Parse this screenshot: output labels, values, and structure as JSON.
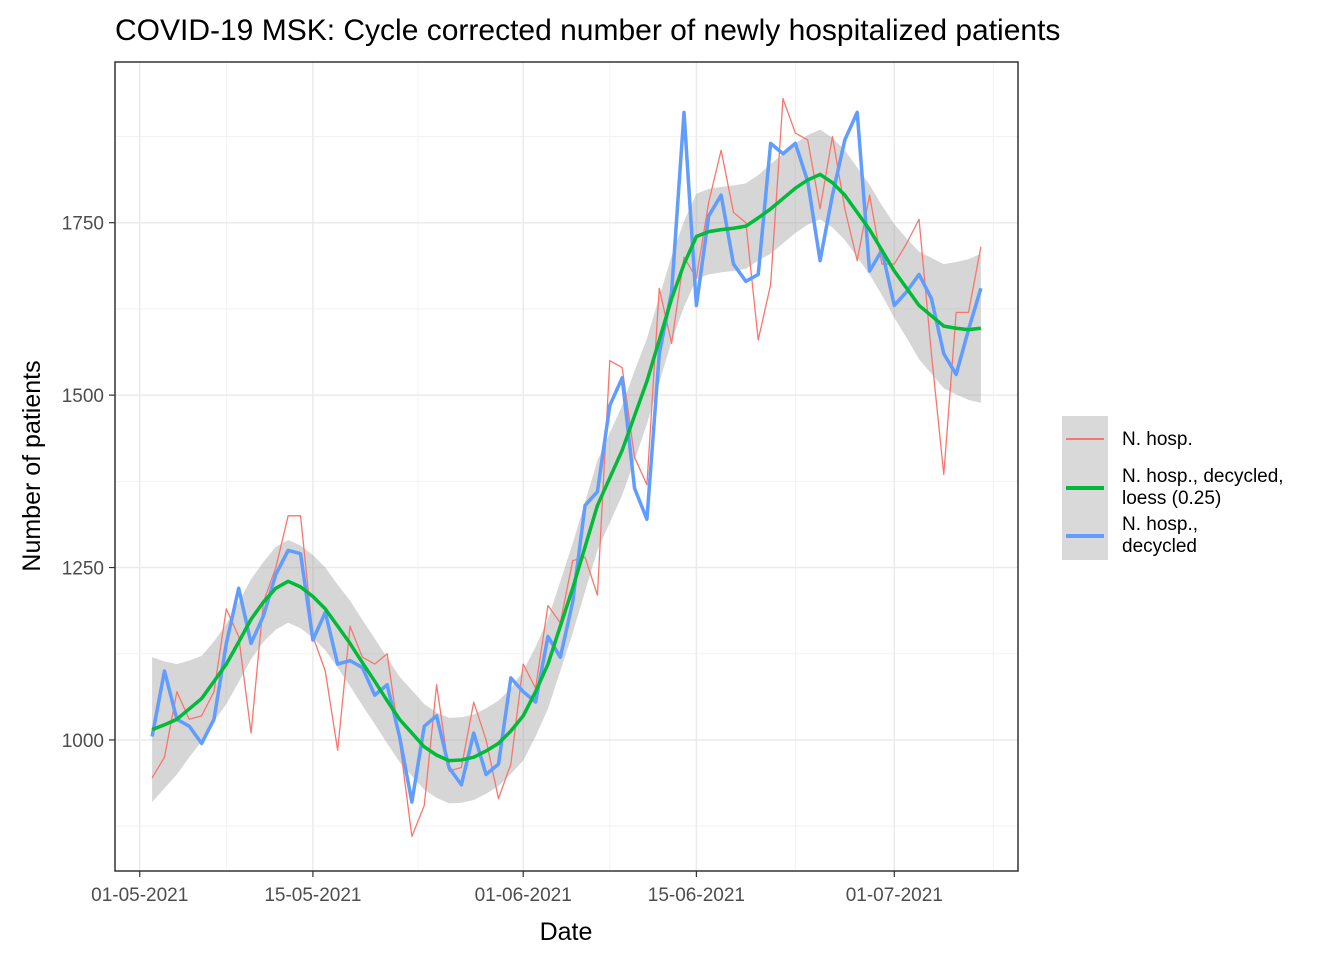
{
  "chart_data": {
    "type": "line",
    "title": "COVID-19 MSK: Cycle corrected number of newly hospitalized patients",
    "x_label": "Date",
    "y_label": "Number of patients",
    "x": [
      "02-05-2021",
      "03-05-2021",
      "04-05-2021",
      "05-05-2021",
      "06-05-2021",
      "07-05-2021",
      "08-05-2021",
      "09-05-2021",
      "10-05-2021",
      "11-05-2021",
      "12-05-2021",
      "13-05-2021",
      "14-05-2021",
      "15-05-2021",
      "16-05-2021",
      "17-05-2021",
      "18-05-2021",
      "19-05-2021",
      "20-05-2021",
      "21-05-2021",
      "22-05-2021",
      "23-05-2021",
      "24-05-2021",
      "25-05-2021",
      "26-05-2021",
      "27-05-2021",
      "28-05-2021",
      "29-05-2021",
      "30-05-2021",
      "31-05-2021",
      "01-06-2021",
      "02-06-2021",
      "03-06-2021",
      "04-06-2021",
      "05-06-2021",
      "06-06-2021",
      "07-06-2021",
      "08-06-2021",
      "09-06-2021",
      "10-06-2021",
      "11-06-2021",
      "12-06-2021",
      "13-06-2021",
      "14-06-2021",
      "15-06-2021",
      "16-06-2021",
      "17-06-2021",
      "18-06-2021",
      "19-06-2021",
      "20-06-2021",
      "21-06-2021",
      "22-06-2021",
      "23-06-2021",
      "24-06-2021",
      "25-06-2021",
      "26-06-2021",
      "27-06-2021",
      "28-06-2021",
      "29-06-2021",
      "30-06-2021",
      "01-07-2021",
      "02-07-2021",
      "03-07-2021",
      "04-07-2021",
      "05-07-2021",
      "06-07-2021",
      "07-07-2021",
      "08-07-2021"
    ],
    "series": [
      {
        "name": "N. hosp.",
        "color": "#F8766D",
        "width": 1.3,
        "values": [
          945,
          975,
          1070,
          1030,
          1035,
          1070,
          1190,
          1150,
          1010,
          1200,
          1250,
          1325,
          1325,
          1150,
          1100,
          985,
          1165,
          1120,
          1110,
          1125,
          1000,
          860,
          905,
          1080,
          955,
          960,
          1055,
          1000,
          915,
          965,
          1110,
          1075,
          1195,
          1170,
          1260,
          1265,
          1210,
          1550,
          1540,
          1410,
          1370,
          1655,
          1575,
          1700,
          1670,
          1780,
          1855,
          1765,
          1750,
          1580,
          1660,
          1930,
          1880,
          1870,
          1770,
          1875,
          1770,
          1695,
          1790,
          1690,
          1690,
          1720,
          1755,
          1560,
          1385,
          1620,
          1620,
          1715
        ]
      },
      {
        "name": "N. hosp., decycled,\nloess (0.25)",
        "color": "#00BA38",
        "width": 3.5,
        "values": [
          1015,
          1022,
          1030,
          1045,
          1060,
          1085,
          1110,
          1142,
          1175,
          1200,
          1220,
          1230,
          1222,
          1208,
          1190,
          1165,
          1140,
          1112,
          1085,
          1057,
          1030,
          1010,
          990,
          978,
          970,
          971,
          975,
          984,
          995,
          1013,
          1035,
          1070,
          1110,
          1165,
          1220,
          1280,
          1340,
          1380,
          1420,
          1470,
          1520,
          1580,
          1640,
          1690,
          1730,
          1737,
          1740,
          1742,
          1745,
          1757,
          1770,
          1785,
          1800,
          1812,
          1820,
          1808,
          1790,
          1765,
          1740,
          1710,
          1680,
          1655,
          1630,
          1615,
          1600,
          1597,
          1595,
          1597
        ],
        "band_lower": [
          910,
          930,
          950,
          975,
          998,
          1027,
          1052,
          1084,
          1117,
          1142,
          1160,
          1170,
          1162,
          1148,
          1130,
          1105,
          1078,
          1050,
          1023,
          995,
          968,
          948,
          928,
          916,
          908,
          909,
          913,
          922,
          933,
          951,
          970,
          1005,
          1045,
          1100,
          1155,
          1215,
          1275,
          1315,
          1355,
          1405,
          1458,
          1518,
          1578,
          1628,
          1668,
          1675,
          1678,
          1680,
          1683,
          1695,
          1705,
          1720,
          1735,
          1747,
          1755,
          1743,
          1725,
          1700,
          1675,
          1645,
          1612,
          1583,
          1552,
          1531,
          1510,
          1501,
          1493,
          1489
        ],
        "band_upper": [
          1120,
          1114,
          1110,
          1115,
          1122,
          1143,
          1168,
          1200,
          1233,
          1258,
          1280,
          1290,
          1282,
          1268,
          1250,
          1225,
          1202,
          1174,
          1147,
          1119,
          1092,
          1072,
          1052,
          1040,
          1032,
          1033,
          1037,
          1046,
          1057,
          1075,
          1100,
          1135,
          1175,
          1230,
          1285,
          1345,
          1405,
          1445,
          1485,
          1535,
          1582,
          1642,
          1702,
          1752,
          1792,
          1799,
          1802,
          1804,
          1807,
          1819,
          1835,
          1850,
          1865,
          1877,
          1885,
          1873,
          1855,
          1830,
          1805,
          1775,
          1748,
          1727,
          1708,
          1699,
          1690,
          1693,
          1697,
          1705
        ],
        "band_color": "#999999"
      },
      {
        "name": "N. hosp.,\ndecycled",
        "color": "#619CFF",
        "width": 3.5,
        "values": [
          1005,
          1100,
          1030,
          1020,
          995,
          1030,
          1140,
          1220,
          1140,
          1180,
          1240,
          1275,
          1270,
          1145,
          1185,
          1110,
          1115,
          1105,
          1065,
          1080,
          1005,
          910,
          1020,
          1035,
          960,
          935,
          1010,
          950,
          965,
          1090,
          1070,
          1055,
          1150,
          1120,
          1200,
          1340,
          1360,
          1485,
          1525,
          1365,
          1320,
          1560,
          1650,
          1910,
          1630,
          1760,
          1790,
          1690,
          1665,
          1675,
          1865,
          1850,
          1865,
          1810,
          1695,
          1790,
          1870,
          1910,
          1680,
          1710,
          1630,
          1650,
          1675,
          1640,
          1560,
          1530,
          1595,
          1655
        ]
      }
    ],
    "draw_order": [
      0,
      2,
      1
    ],
    "xlim": [
      "29-04-2021",
      "11-07-2021"
    ],
    "xticks": [
      "01-05-2021",
      "15-05-2021",
      "01-06-2021",
      "15-06-2021",
      "01-07-2021"
    ],
    "ylim": [
      810,
      1983
    ],
    "yticks": [
      1000,
      1250,
      1500,
      1750
    ],
    "grid": true,
    "legend": "right"
  }
}
